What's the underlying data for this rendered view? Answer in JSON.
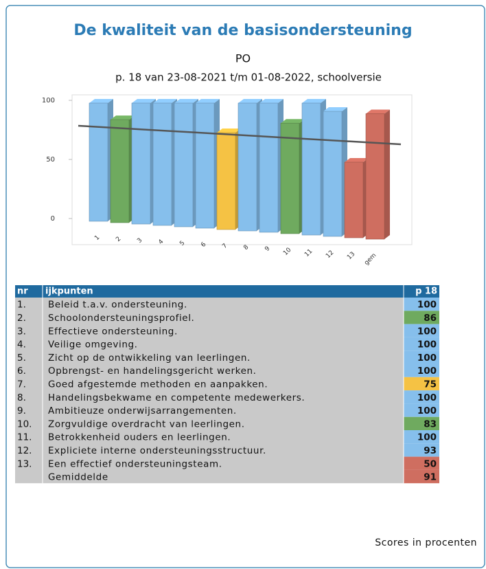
{
  "chart_data": {
    "type": "bar",
    "title": "De kwaliteit van de basisondersteuning",
    "subtitle": "PO",
    "period": "p. 18 van 23-08-2021 t/m 01-08-2022, schoolversie",
    "categories": [
      "1",
      "2",
      "3",
      "4",
      "5",
      "6",
      "7",
      "8",
      "9",
      "10",
      "11",
      "12",
      "13",
      "gem"
    ],
    "values": [
      100,
      86,
      100,
      100,
      100,
      100,
      75,
      100,
      100,
      83,
      100,
      93,
      50,
      91
    ],
    "colors": [
      "#86bfec",
      "#6faa5f",
      "#86bfec",
      "#86bfec",
      "#86bfec",
      "#86bfec",
      "#f5c244",
      "#86bfec",
      "#86bfec",
      "#6faa5f",
      "#86bfec",
      "#86bfec",
      "#cf6e60",
      "#cf6e60"
    ],
    "ylim": [
      0,
      100
    ],
    "yticks": [
      0,
      50,
      100
    ],
    "grid": false
  },
  "table": {
    "header": [
      "nr",
      "ijkpunten",
      "p 18"
    ],
    "rows": [
      {
        "nr": "1.",
        "label": "Beleid t.a.v. ondersteuning.",
        "score": 100
      },
      {
        "nr": "2.",
        "label": "Schoolondersteuningsprofiel.",
        "score": 86
      },
      {
        "nr": "3.",
        "label": "Effectieve ondersteuning.",
        "score": 100
      },
      {
        "nr": "4.",
        "label": "Veilige omgeving.",
        "score": 100
      },
      {
        "nr": "5.",
        "label": "Zicht op de ontwikkeling van leerlingen.",
        "score": 100
      },
      {
        "nr": "6.",
        "label": "Opbrengst- en handelingsgericht werken.",
        "score": 100
      },
      {
        "nr": "7.",
        "label": "Goed afgestemde methoden en aanpakken.",
        "score": 75
      },
      {
        "nr": "8.",
        "label": "Handelingsbekwame en competente medewerkers.",
        "score": 100
      },
      {
        "nr": "9.",
        "label": "Ambitieuze onderwijsarrangementen.",
        "score": 100
      },
      {
        "nr": "10.",
        "label": "Zorgvuldige overdracht van leerlingen.",
        "score": 83
      },
      {
        "nr": "11.",
        "label": "Betrokkenheid ouders en leerlingen.",
        "score": 100
      },
      {
        "nr": "12.",
        "label": "Expliciete interne ondersteuningsstructuur.",
        "score": 93
      },
      {
        "nr": "13.",
        "label": "Een effectief ondersteuningsteam.",
        "score": 50
      },
      {
        "label": "Gemiddelde",
        "score": 91
      }
    ],
    "footnote": "Scores in procenten"
  }
}
